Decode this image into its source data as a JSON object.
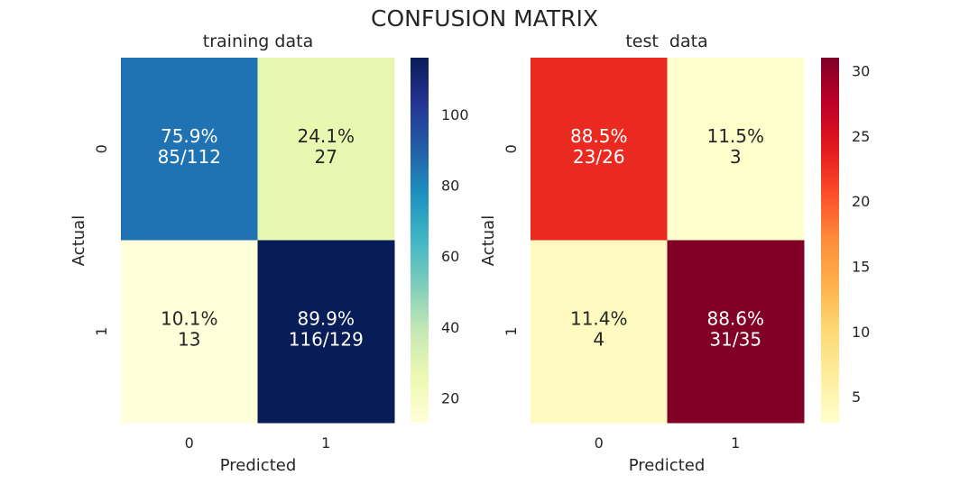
{
  "figure": {
    "title": "CONFUSION MATRIX"
  },
  "colors": {
    "YlGnBu": [
      "#ffffd9",
      "#edf8b1",
      "#c7e9b4",
      "#7fcdbb",
      "#41b6c4",
      "#1d91c0",
      "#225ea8",
      "#253494",
      "#081d58"
    ],
    "YlOrRd": [
      "#ffffcc",
      "#ffeda0",
      "#fed976",
      "#feb24c",
      "#fd8d3c",
      "#fc4e2a",
      "#e31a1c",
      "#bd0026",
      "#800026"
    ]
  },
  "chart_data": [
    {
      "type": "heatmap",
      "title": "training data",
      "xlabel": "Predicted",
      "ylabel": "Actual",
      "x_categories": [
        "0",
        "1"
      ],
      "y_categories": [
        "0",
        "1"
      ],
      "values": [
        [
          85,
          27
        ],
        [
          13,
          116
        ]
      ],
      "annotations": [
        [
          "75.9%\n85/112",
          "24.1%\n27"
        ],
        [
          "10.1%\n13",
          "89.9%\n116/129"
        ]
      ],
      "colormap": "YlGnBu",
      "colorbar": {
        "min": 13,
        "max": 116,
        "ticks": [
          20,
          40,
          60,
          80,
          100
        ]
      }
    },
    {
      "type": "heatmap",
      "title": "test  data",
      "xlabel": "Predicted",
      "ylabel": "Actual",
      "x_categories": [
        "0",
        "1"
      ],
      "y_categories": [
        "0",
        "1"
      ],
      "values": [
        [
          23,
          3
        ],
        [
          4,
          31
        ]
      ],
      "annotations": [
        [
          "88.5%\n23/26",
          "11.5%\n3"
        ],
        [
          "11.4%\n4",
          "88.6%\n31/35"
        ]
      ],
      "colormap": "YlOrRd",
      "colorbar": {
        "min": 3,
        "max": 31,
        "ticks": [
          5,
          10,
          15,
          20,
          25,
          30
        ]
      }
    }
  ]
}
